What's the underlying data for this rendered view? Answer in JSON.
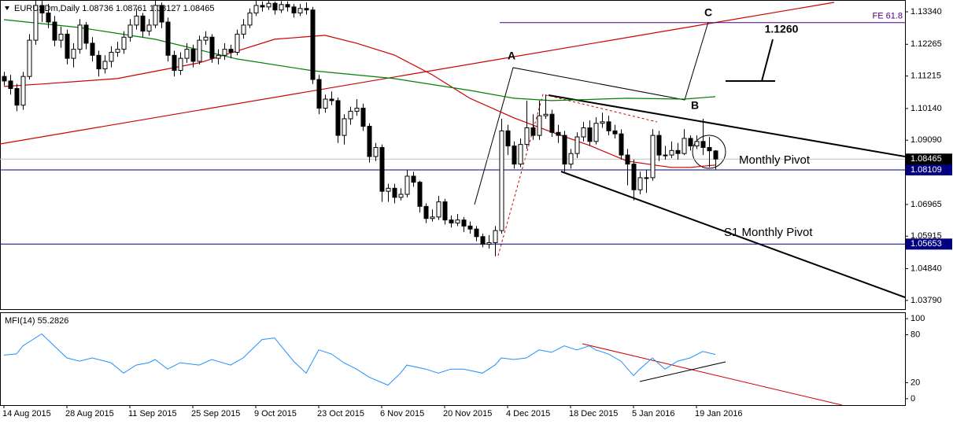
{
  "chart_data": [
    {
      "type": "candlestick",
      "title": "EURUSDm,Daily",
      "up_color": "#ffffff",
      "down_color": "#000000",
      "xlim": [
        -0.625,
        143.125
      ],
      "ylim": [
        1.035,
        1.1373
      ],
      "yticks": [
        {
          "value": 1.1334,
          "label": "1.13340"
        },
        {
          "value": 1.12265,
          "label": "1.12265"
        },
        {
          "value": 1.11215,
          "label": "1.11215"
        },
        {
          "value": 1.1014,
          "label": "1.10140"
        },
        {
          "value": 1.0909,
          "label": "1.09090"
        },
        {
          "value": 1.06965,
          "label": "1.06965"
        },
        {
          "value": 1.05915,
          "label": "1.05915"
        },
        {
          "value": 1.0484,
          "label": "1.04840"
        },
        {
          "value": 1.0379,
          "label": "1.03790"
        }
      ],
      "xticks": [
        {
          "value": 0,
          "label": "14 Aug 2015"
        },
        {
          "value": 10,
          "label": "28 Aug 2015"
        },
        {
          "value": 20,
          "label": "11 Sep 2015"
        },
        {
          "value": 30,
          "label": "25 Sep 2015"
        },
        {
          "value": 40,
          "label": "9 Oct 2015"
        },
        {
          "value": 50,
          "label": "23 Oct 2015"
        },
        {
          "value": 60,
          "label": "6 Nov 2015"
        },
        {
          "value": 70,
          "label": "20 Nov 2015"
        },
        {
          "value": 80,
          "label": "4 Dec 2015"
        },
        {
          "value": 90,
          "label": "18 Dec 2015"
        },
        {
          "value": 100,
          "label": "5 Jan 2016"
        },
        {
          "value": 110,
          "label": "19 Jan 2016"
        }
      ],
      "ohlc": [
        [
          1.112,
          1.1135,
          1.109,
          1.1105
        ],
        [
          1.1105,
          1.1125,
          1.106,
          1.108
        ],
        [
          1.108,
          1.1095,
          1.1005,
          1.1025
        ],
        [
          1.1025,
          1.1135,
          1.101,
          1.112
        ],
        [
          1.112,
          1.126,
          1.111,
          1.124
        ],
        [
          1.124,
          1.137,
          1.1225,
          1.1355
        ],
        [
          1.1355,
          1.137,
          1.13,
          1.133
        ],
        [
          1.133,
          1.136,
          1.128,
          1.13
        ],
        [
          1.13,
          1.132,
          1.122,
          1.124
        ],
        [
          1.124,
          1.1285,
          1.1215,
          1.126
        ],
        [
          1.126,
          1.1275,
          1.116,
          1.118
        ],
        [
          1.118,
          1.123,
          1.115,
          1.121
        ],
        [
          1.121,
          1.131,
          1.1195,
          1.129
        ],
        [
          1.129,
          1.13,
          1.121,
          1.123
        ],
        [
          1.123,
          1.125,
          1.117,
          1.119
        ],
        [
          1.119,
          1.1205,
          1.112,
          1.1145
        ],
        [
          1.1145,
          1.119,
          1.113,
          1.117
        ],
        [
          1.117,
          1.122,
          1.115,
          1.12
        ],
        [
          1.12,
          1.1235,
          1.1185,
          1.121
        ],
        [
          1.121,
          1.127,
          1.1195,
          1.125
        ],
        [
          1.125,
          1.131,
          1.1235,
          1.129
        ],
        [
          1.129,
          1.1345,
          1.1275,
          1.132
        ],
        [
          1.132,
          1.133,
          1.125,
          1.127
        ],
        [
          1.127,
          1.131,
          1.1255,
          1.129
        ],
        [
          1.129,
          1.137,
          1.128,
          1.1355
        ],
        [
          1.1355,
          1.1365,
          1.128,
          1.13
        ],
        [
          1.13,
          1.1315,
          1.117,
          1.119
        ],
        [
          1.119,
          1.1205,
          1.112,
          1.114
        ],
        [
          1.114,
          1.12,
          1.1125,
          1.118
        ],
        [
          1.118,
          1.123,
          1.1165,
          1.121
        ],
        [
          1.121,
          1.1225,
          1.115,
          1.117
        ],
        [
          1.117,
          1.1255,
          1.116,
          1.124
        ],
        [
          1.124,
          1.127,
          1.1225,
          1.125
        ],
        [
          1.125,
          1.126,
          1.1165,
          1.118
        ],
        [
          1.118,
          1.121,
          1.116,
          1.119
        ],
        [
          1.119,
          1.123,
          1.1175,
          1.121
        ],
        [
          1.121,
          1.1225,
          1.118,
          1.12
        ],
        [
          1.12,
          1.1275,
          1.119,
          1.126
        ],
        [
          1.126,
          1.131,
          1.1245,
          1.129
        ],
        [
          1.129,
          1.1345,
          1.128,
          1.133
        ],
        [
          1.133,
          1.137,
          1.132,
          1.1355
        ],
        [
          1.1355,
          1.1368,
          1.1335,
          1.135
        ],
        [
          1.135,
          1.137,
          1.134,
          1.1362
        ],
        [
          1.1362,
          1.1368,
          1.1325,
          1.134
        ],
        [
          1.134,
          1.1369,
          1.133,
          1.1358
        ],
        [
          1.1358,
          1.1368,
          1.1335,
          1.135
        ],
        [
          1.135,
          1.136,
          1.1315,
          1.133
        ],
        [
          1.133,
          1.136,
          1.132,
          1.1345
        ],
        [
          1.1345,
          1.1365,
          1.1325,
          1.134
        ],
        [
          1.134,
          1.135,
          1.1095,
          1.111
        ],
        [
          1.111,
          1.1125,
          1.0995,
          1.1015
        ],
        [
          1.1015,
          1.106,
          1.1,
          1.1045
        ],
        [
          1.1045,
          1.107,
          1.1025,
          1.104
        ],
        [
          1.104,
          1.105,
          1.09,
          1.0925
        ],
        [
          1.0925,
          1.0995,
          1.0895,
          1.098
        ],
        [
          1.098,
          1.102,
          1.096,
          1.1005
        ],
        [
          1.1005,
          1.1045,
          1.099,
          1.1015
        ],
        [
          1.1015,
          1.103,
          1.094,
          1.0955
        ],
        [
          1.0955,
          1.0965,
          1.0835,
          1.0855
        ],
        [
          1.0855,
          1.09,
          1.084,
          1.0885
        ],
        [
          1.0885,
          1.0895,
          1.0705,
          1.074
        ],
        [
          1.074,
          1.0765,
          1.0705,
          1.075
        ],
        [
          1.075,
          1.0765,
          1.07,
          1.072
        ],
        [
          1.072,
          1.075,
          1.071,
          1.073
        ],
        [
          1.073,
          1.081,
          1.072,
          1.079
        ],
        [
          1.079,
          1.0805,
          1.0755,
          1.077
        ],
        [
          1.077,
          1.0775,
          1.067,
          1.069
        ],
        [
          1.069,
          1.07,
          1.0635,
          1.065
        ],
        [
          1.065,
          1.068,
          1.064,
          1.0655
        ],
        [
          1.0655,
          1.0725,
          1.0645,
          1.0705
        ],
        [
          1.0705,
          1.0715,
          1.063,
          1.0645
        ],
        [
          1.0645,
          1.066,
          1.062,
          1.0635
        ],
        [
          1.0635,
          1.0665,
          1.0625,
          1.0645
        ],
        [
          1.0645,
          1.0655,
          1.0605,
          1.0625
        ],
        [
          1.0625,
          1.064,
          1.06,
          1.0615
        ],
        [
          1.0615,
          1.0625,
          1.0575,
          1.059
        ],
        [
          1.059,
          1.06,
          1.0555,
          1.0565
        ],
        [
          1.0565,
          1.0595,
          1.055,
          1.057
        ],
        [
          1.057,
          1.0625,
          1.0525,
          1.061
        ],
        [
          1.061,
          1.098,
          1.06,
          1.094
        ],
        [
          1.094,
          1.096,
          1.086,
          1.089
        ],
        [
          1.089,
          1.0905,
          1.0815,
          1.083
        ],
        [
          1.083,
          1.0915,
          1.082,
          1.0895
        ],
        [
          1.0895,
          1.104,
          1.088,
          1.095
        ],
        [
          1.095,
          1.0995,
          1.091,
          1.0925
        ],
        [
          1.0925,
          1.104,
          1.091,
          1.099
        ],
        [
          1.099,
          1.106,
          1.098,
          1.0995
        ],
        [
          1.0995,
          1.101,
          1.092,
          1.0935
        ],
        [
          1.0935,
          1.096,
          1.09,
          1.0925
        ],
        [
          1.0925,
          1.094,
          1.0805,
          1.083
        ],
        [
          1.083,
          1.088,
          1.0815,
          1.0865
        ],
        [
          1.0865,
          1.0935,
          1.085,
          1.092
        ],
        [
          1.092,
          1.097,
          1.0905,
          1.095
        ],
        [
          1.095,
          1.0975,
          1.089,
          1.0905
        ],
        [
          1.0905,
          1.0985,
          1.0895,
          1.0965
        ],
        [
          1.0965,
          1.1,
          1.095,
          1.097
        ],
        [
          1.097,
          1.099,
          1.0925,
          1.094
        ],
        [
          1.094,
          1.096,
          1.0915,
          1.093
        ],
        [
          1.093,
          1.0945,
          1.0845,
          1.086
        ],
        [
          1.086,
          1.088,
          1.076,
          1.083
        ],
        [
          1.083,
          1.0845,
          1.071,
          1.0745
        ],
        [
          1.0745,
          1.0805,
          1.073,
          1.0785
        ],
        [
          1.0785,
          1.081,
          1.0735,
          1.0785
        ],
        [
          1.0785,
          1.0945,
          1.0775,
          1.0925
        ],
        [
          1.0925,
          1.094,
          1.084,
          1.086
        ],
        [
          1.086,
          1.089,
          1.0845,
          1.086
        ],
        [
          1.086,
          1.0905,
          1.085,
          1.0875
        ],
        [
          1.0875,
          1.09,
          1.0845,
          1.0865
        ],
        [
          1.0865,
          1.0945,
          1.086,
          1.0915
        ],
        [
          1.0915,
          1.0925,
          1.0875,
          1.089
        ],
        [
          1.089,
          1.0925,
          1.088,
          1.0905
        ],
        [
          1.0905,
          1.098,
          1.086,
          1.0885
        ],
        [
          1.0885,
          1.092,
          1.082,
          1.0874
        ],
        [
          1.08736,
          1.08761,
          1.08127,
          1.08465
        ]
      ],
      "lines": [
        {
          "color": "#cc0000",
          "x": [
            0,
            6,
            18,
            31,
            37,
            43,
            51,
            56,
            62,
            68,
            74,
            81,
            87,
            93,
            99,
            106,
            109,
            113
          ],
          "values": [
            1.1087,
            1.1095,
            1.1113,
            1.1165,
            1.1204,
            1.1243,
            1.1256,
            1.123,
            1.1191,
            1.1126,
            1.1048,
            1.0983,
            1.0936,
            1.0892,
            1.084,
            1.0819,
            1.0819,
            1.0827
          ]
        },
        {
          "color": "#008000",
          "x": [
            0,
            12,
            24,
            37,
            49,
            62,
            74,
            81,
            87,
            99,
            108,
            113
          ],
          "values": [
            1.1308,
            1.1282,
            1.1243,
            1.1178,
            1.1139,
            1.1113,
            1.1074,
            1.1048,
            1.104,
            1.1048,
            1.1045,
            1.1053
          ]
        }
      ],
      "levels": [
        {
          "label": "Monthly Pivot",
          "value": 1.08109,
          "color": "#000080"
        },
        {
          "label": "S1 Monthly Pivot",
          "value": 1.05653,
          "color": "#000080"
        }
      ],
      "fe_level": {
        "label": "FE 61.8",
        "value": 1.1298,
        "color": "#4b0082"
      },
      "annotations": {
        "a": "A",
        "b": "B",
        "c": "C",
        "target": "1.1260"
      }
    },
    {
      "type": "line",
      "name": "MFI(14)",
      "color": "#1e90ff",
      "xlim": [
        -0.625,
        143.125
      ],
      "ylim": [
        -8,
        108
      ],
      "yticks": [
        100,
        80,
        20,
        0
      ],
      "x": [
        0,
        2,
        3,
        6,
        8,
        10,
        12,
        14,
        17,
        19,
        21,
        23,
        24,
        26,
        28,
        31,
        33,
        36,
        38,
        41,
        43,
        44,
        46,
        48,
        50,
        52,
        54,
        56,
        58,
        61,
        63,
        64,
        67,
        69,
        71,
        73,
        76,
        78,
        79,
        81,
        83,
        85,
        87,
        89,
        91,
        93,
        94,
        96,
        98,
        100,
        101,
        103,
        105,
        107,
        109,
        111,
        113
      ],
      "values": [
        54.5,
        56,
        66,
        81,
        66,
        51,
        47,
        51,
        45,
        32,
        42,
        45,
        49,
        37,
        45,
        42,
        49,
        42,
        51,
        74,
        76,
        66,
        47,
        32,
        61,
        56,
        45,
        37,
        27,
        17,
        32,
        42,
        37,
        32,
        37,
        37,
        32,
        42,
        51,
        49,
        51,
        61,
        58,
        66,
        61,
        66,
        61,
        56,
        47,
        29,
        37,
        51,
        37,
        47,
        51,
        59,
        55.2826
      ]
    }
  ]
}
